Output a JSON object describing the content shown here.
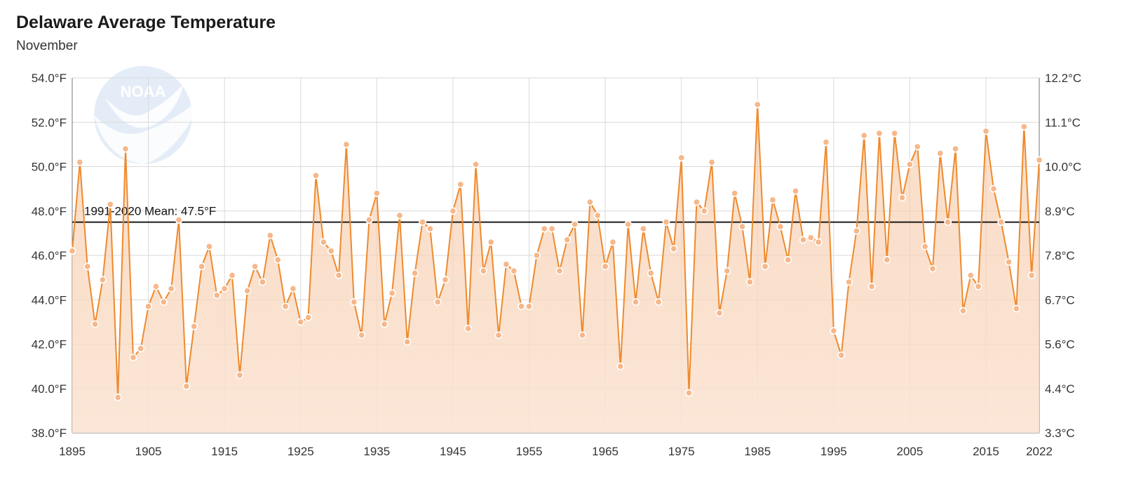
{
  "title": "Delaware Average Temperature",
  "subtitle": "November",
  "logo_text": "NOAA",
  "colors": {
    "line": "#ee8a2e",
    "fill_top": "#f6c6a0",
    "fill_bottom": "#fbe4d4",
    "mean": "#1a1a1a",
    "grid": "#d9d9d9"
  },
  "chart_data": {
    "type": "line",
    "x_ticks": [
      "1895",
      "1905",
      "1915",
      "1925",
      "1935",
      "1945",
      "1955",
      "1965",
      "1975",
      "1985",
      "1995",
      "2005",
      "2015",
      "2022"
    ],
    "y_ticks_left": [
      "38.0°F",
      "40.0°F",
      "42.0°F",
      "44.0°F",
      "46.0°F",
      "48.0°F",
      "50.0°F",
      "52.0°F",
      "54.0°F"
    ],
    "y_ticks_right": [
      "3.3°C",
      "4.4°C",
      "5.6°C",
      "6.7°C",
      "7.8°C",
      "8.9°C",
      "10.0°C",
      "11.1°C",
      "12.2°C"
    ],
    "xlim": [
      1895,
      2022
    ],
    "ylim": [
      38,
      54
    ],
    "grid": true,
    "mean": {
      "label": "1991-2020 Mean: 47.5°F",
      "value": 47.5
    },
    "x_start": 1895,
    "values": [
      46.2,
      50.2,
      45.5,
      42.9,
      44.9,
      48.3,
      39.6,
      50.8,
      41.4,
      41.8,
      43.7,
      44.6,
      43.9,
      44.5,
      47.6,
      40.1,
      42.8,
      45.5,
      46.4,
      44.2,
      44.5,
      45.1,
      40.6,
      44.4,
      45.5,
      44.8,
      46.9,
      45.8,
      43.7,
      44.5,
      43.0,
      43.2,
      49.6,
      46.6,
      46.2,
      45.1,
      51.0,
      43.9,
      42.4,
      47.6,
      48.8,
      42.9,
      44.3,
      47.8,
      42.1,
      45.2,
      47.5,
      47.2,
      43.9,
      44.9,
      48.0,
      49.2,
      42.7,
      50.1,
      45.3,
      46.6,
      42.4,
      45.6,
      45.3,
      43.7,
      43.7,
      46.0,
      47.2,
      47.2,
      45.3,
      46.7,
      47.4,
      42.4,
      48.4,
      47.8,
      45.5,
      46.6,
      41.0,
      47.4,
      43.9,
      47.2,
      45.2,
      43.9,
      47.5,
      46.3,
      50.4,
      39.8,
      48.4,
      48.0,
      50.2,
      43.4,
      45.3,
      48.8,
      47.3,
      44.8,
      52.8,
      45.5,
      48.5,
      47.3,
      45.8,
      48.9,
      46.7,
      46.8,
      46.6,
      51.1,
      42.6,
      41.5,
      44.8,
      47.1,
      51.4,
      44.6,
      51.5,
      45.8,
      51.5,
      48.6,
      50.1,
      50.9,
      46.4,
      45.4,
      50.6,
      47.5,
      50.8,
      43.5,
      45.1,
      44.6,
      51.6,
      49.0,
      47.5,
      45.7,
      43.6,
      51.8,
      45.1,
      50.3
    ]
  }
}
